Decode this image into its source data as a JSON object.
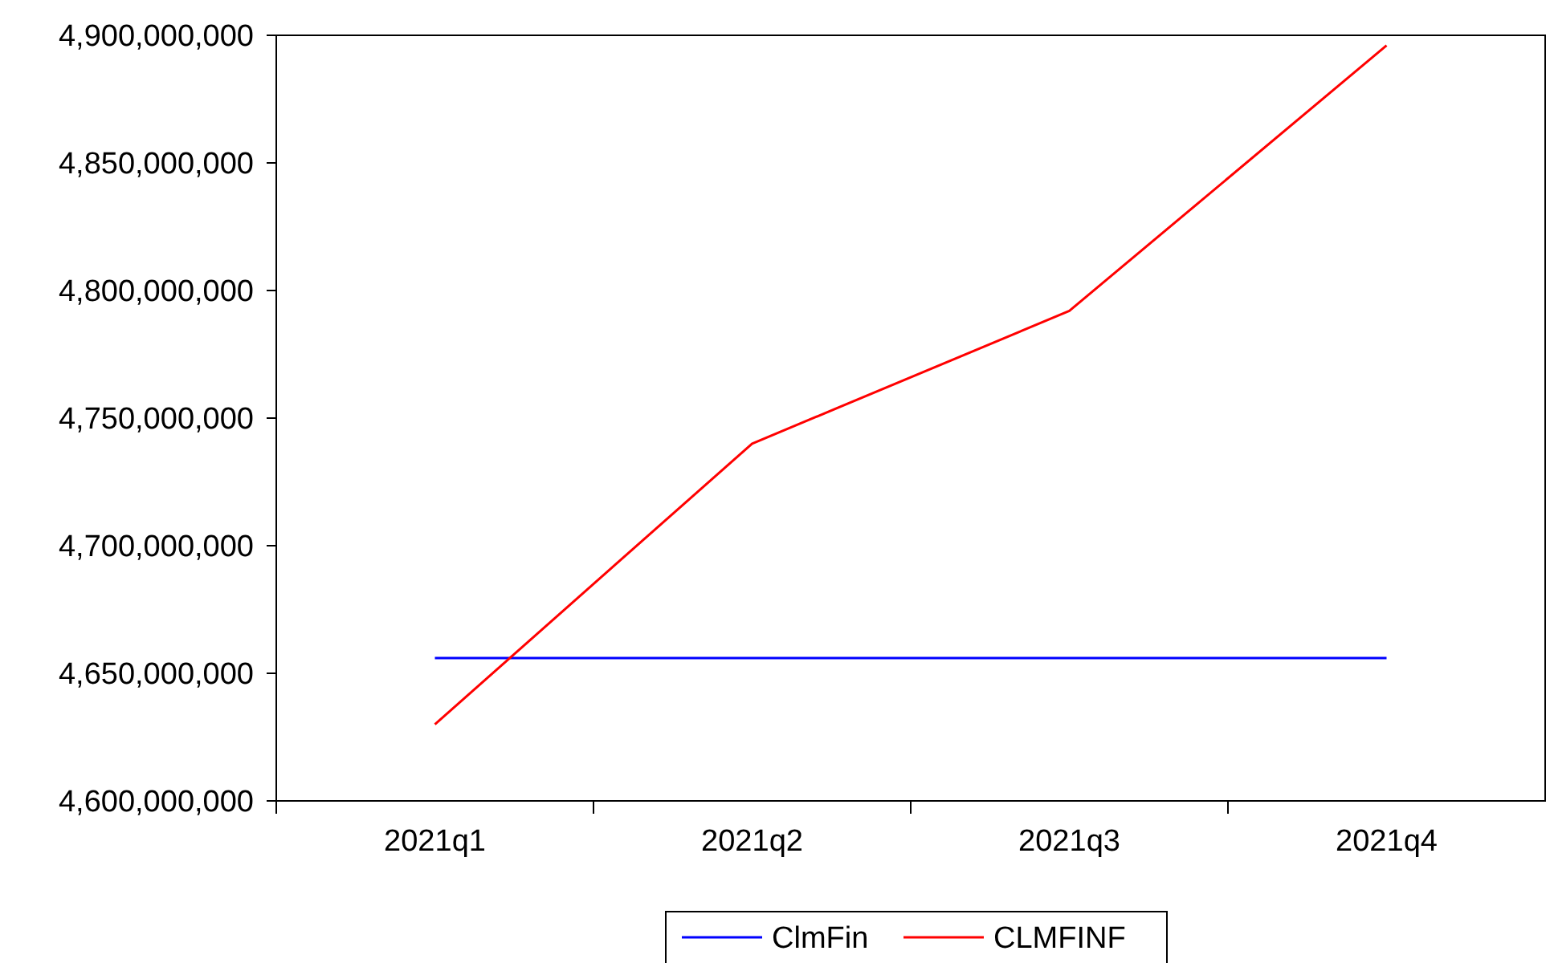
{
  "chart_data": {
    "type": "line",
    "categories": [
      "2021q1",
      "2021q2",
      "2021q3",
      "2021q4"
    ],
    "series": [
      {
        "name": "ClmFin",
        "color": "#0000ff",
        "values": [
          4656000000,
          4656000000,
          4656000000,
          4656000000
        ]
      },
      {
        "name": "CLMFINF",
        "color": "#ff0000",
        "values": [
          4630000000,
          4740000000,
          4792000000,
          4896000000
        ]
      }
    ],
    "ylim": [
      4600000000,
      4900000000
    ],
    "yticks": [
      {
        "value": 4600000000,
        "label": "4,600,000,000"
      },
      {
        "value": 4650000000,
        "label": "4,650,000,000"
      },
      {
        "value": 4700000000,
        "label": "4,700,000,000"
      },
      {
        "value": 4750000000,
        "label": "4,750,000,000"
      },
      {
        "value": 4800000000,
        "label": "4,800,000,000"
      },
      {
        "value": 4850000000,
        "label": "4,850,000,000"
      },
      {
        "value": 4900000000,
        "label": "4,900,000,000"
      }
    ],
    "grid": false,
    "legend": "bottom",
    "marker": "none",
    "line_style": "solid"
  }
}
